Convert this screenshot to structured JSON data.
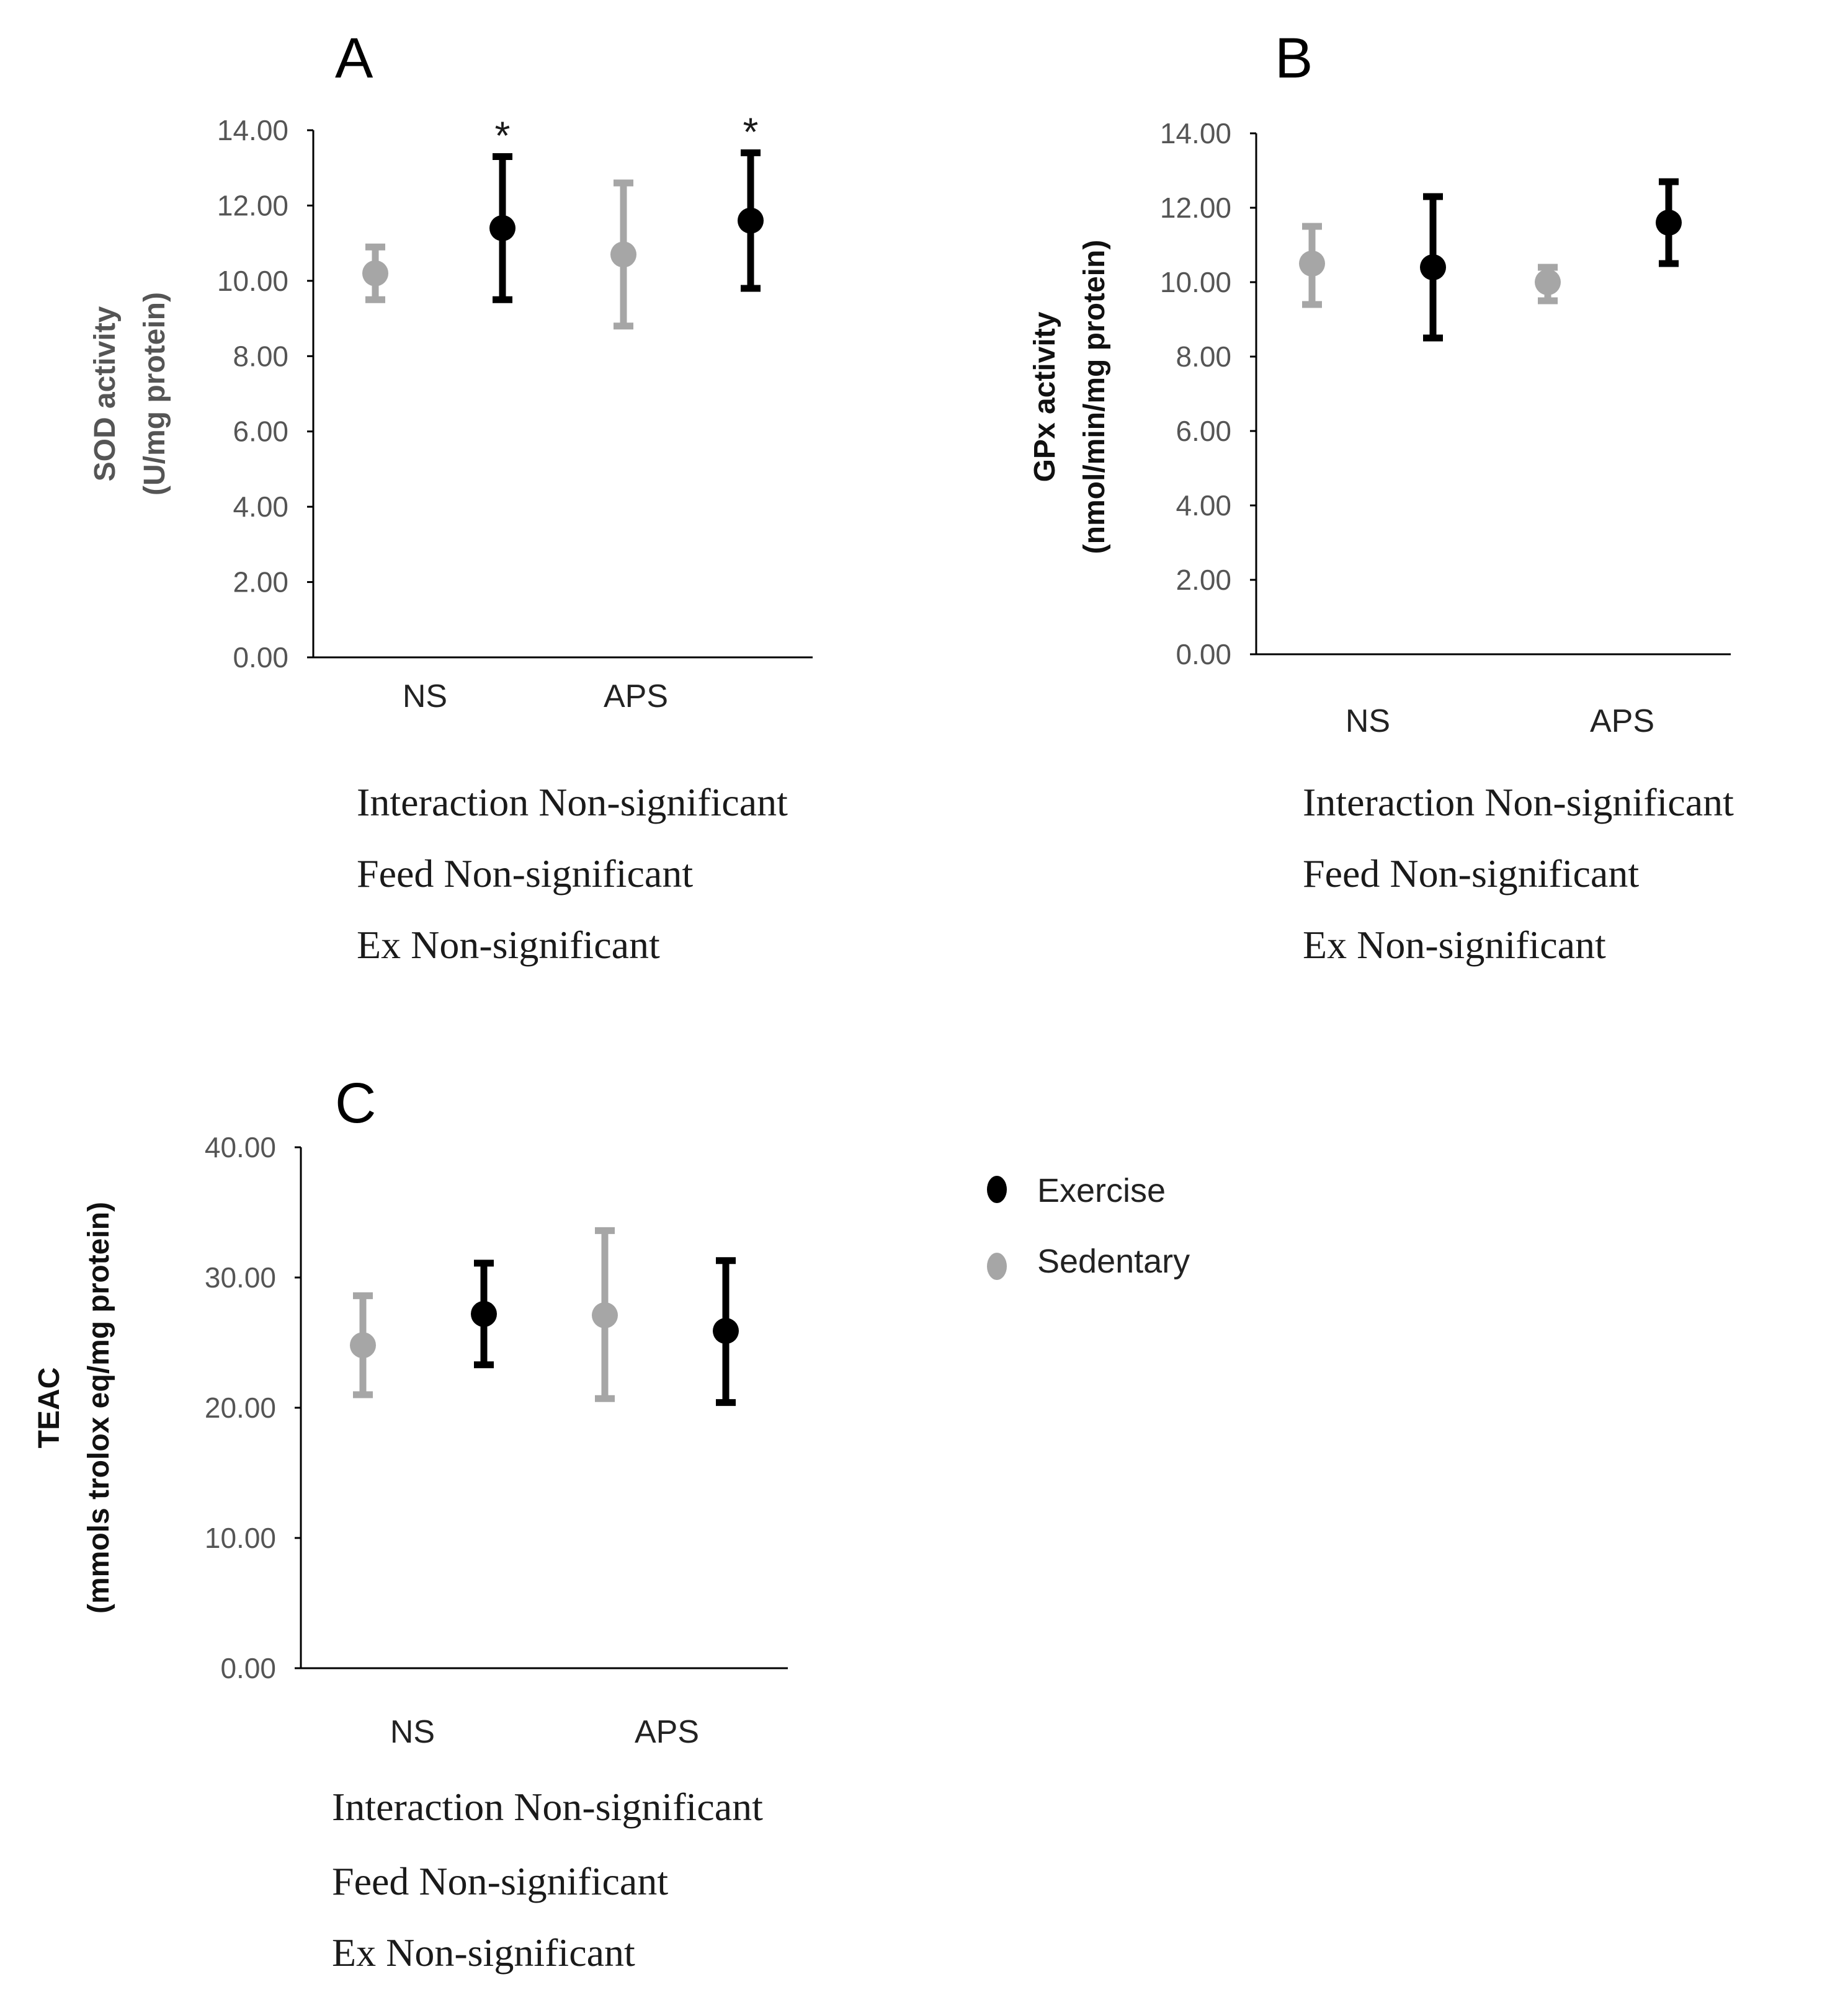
{
  "figure_panels": [
    "A",
    "B",
    "C"
  ],
  "colors": {
    "exercise": "#000000",
    "sedentary": "#a6a6a6",
    "axis": "#000000",
    "tick_text": "#555555"
  },
  "legend": {
    "exercise": "Exercise",
    "sedentary": "Sedentary"
  },
  "chart_data": [
    {
      "id": "A",
      "type": "scatter",
      "panel_label": "A",
      "ylabel_line1": "SOD activity",
      "ylabel_line2": "(U/mg protein)",
      "ylim": [
        0,
        14
      ],
      "yticks": [
        "0.00",
        "2.00",
        "4.00",
        "6.00",
        "8.00",
        "10.00",
        "12.00",
        "14.00"
      ],
      "categories": [
        "NS",
        "APS"
      ],
      "points": [
        {
          "group": "sedentary",
          "category": "NS",
          "value": 10.2,
          "err_low": 9.5,
          "err_high": 10.9,
          "star": ""
        },
        {
          "group": "exercise",
          "category": "NS",
          "value": 11.4,
          "err_low": 9.5,
          "err_high": 13.3,
          "star": "*"
        },
        {
          "group": "sedentary",
          "category": "APS",
          "value": 10.7,
          "err_low": 8.8,
          "err_high": 12.6,
          "star": ""
        },
        {
          "group": "exercise",
          "category": "APS",
          "value": 11.6,
          "err_low": 9.8,
          "err_high": 13.4,
          "star": "*"
        }
      ],
      "stats": [
        "Interaction Non-significant",
        "Feed Non-significant",
        "Ex Non-significant"
      ]
    },
    {
      "id": "B",
      "type": "scatter",
      "panel_label": "B",
      "ylabel_line1": "GPx activity",
      "ylabel_line2": "(nmol/min/mg protein)",
      "ylim": [
        0,
        14
      ],
      "yticks": [
        "0.00",
        "2.00",
        "4.00",
        "6.00",
        "8.00",
        "10.00",
        "12.00",
        "14.00"
      ],
      "categories": [
        "NS",
        "APS"
      ],
      "points": [
        {
          "group": "sedentary",
          "category": "NS",
          "value": 10.5,
          "err_low": 9.4,
          "err_high": 11.5,
          "star": ""
        },
        {
          "group": "exercise",
          "category": "NS",
          "value": 10.4,
          "err_low": 8.5,
          "err_high": 12.3,
          "star": ""
        },
        {
          "group": "sedentary",
          "category": "APS",
          "value": 10.0,
          "err_low": 9.5,
          "err_high": 10.4,
          "star": ""
        },
        {
          "group": "exercise",
          "category": "APS",
          "value": 11.6,
          "err_low": 10.5,
          "err_high": 12.7,
          "star": ""
        }
      ],
      "stats": [
        "Interaction Non-significant",
        "Feed Non-significant",
        "Ex Non-significant"
      ]
    },
    {
      "id": "C",
      "type": "scatter",
      "panel_label": "C",
      "ylabel_line1": "TEAC",
      "ylabel_line2": "(mmols trolox eq/mg protein)",
      "ylim": [
        0,
        40
      ],
      "yticks": [
        "0.00",
        "10.00",
        "20.00",
        "30.00",
        "40.00"
      ],
      "categories": [
        "NS",
        "APS"
      ],
      "points": [
        {
          "group": "sedentary",
          "category": "NS",
          "value": 24.8,
          "err_low": 21.0,
          "err_high": 28.6,
          "star": ""
        },
        {
          "group": "exercise",
          "category": "NS",
          "value": 27.2,
          "err_low": 23.3,
          "err_high": 31.1,
          "star": ""
        },
        {
          "group": "sedentary",
          "category": "APS",
          "value": 27.1,
          "err_low": 20.7,
          "err_high": 33.6,
          "star": ""
        },
        {
          "group": "exercise",
          "category": "APS",
          "value": 25.9,
          "err_low": 20.4,
          "err_high": 31.3,
          "star": ""
        }
      ],
      "stats": [
        "Interaction Non-significant",
        "Feed Non-significant",
        "Ex Non-significant"
      ]
    }
  ]
}
